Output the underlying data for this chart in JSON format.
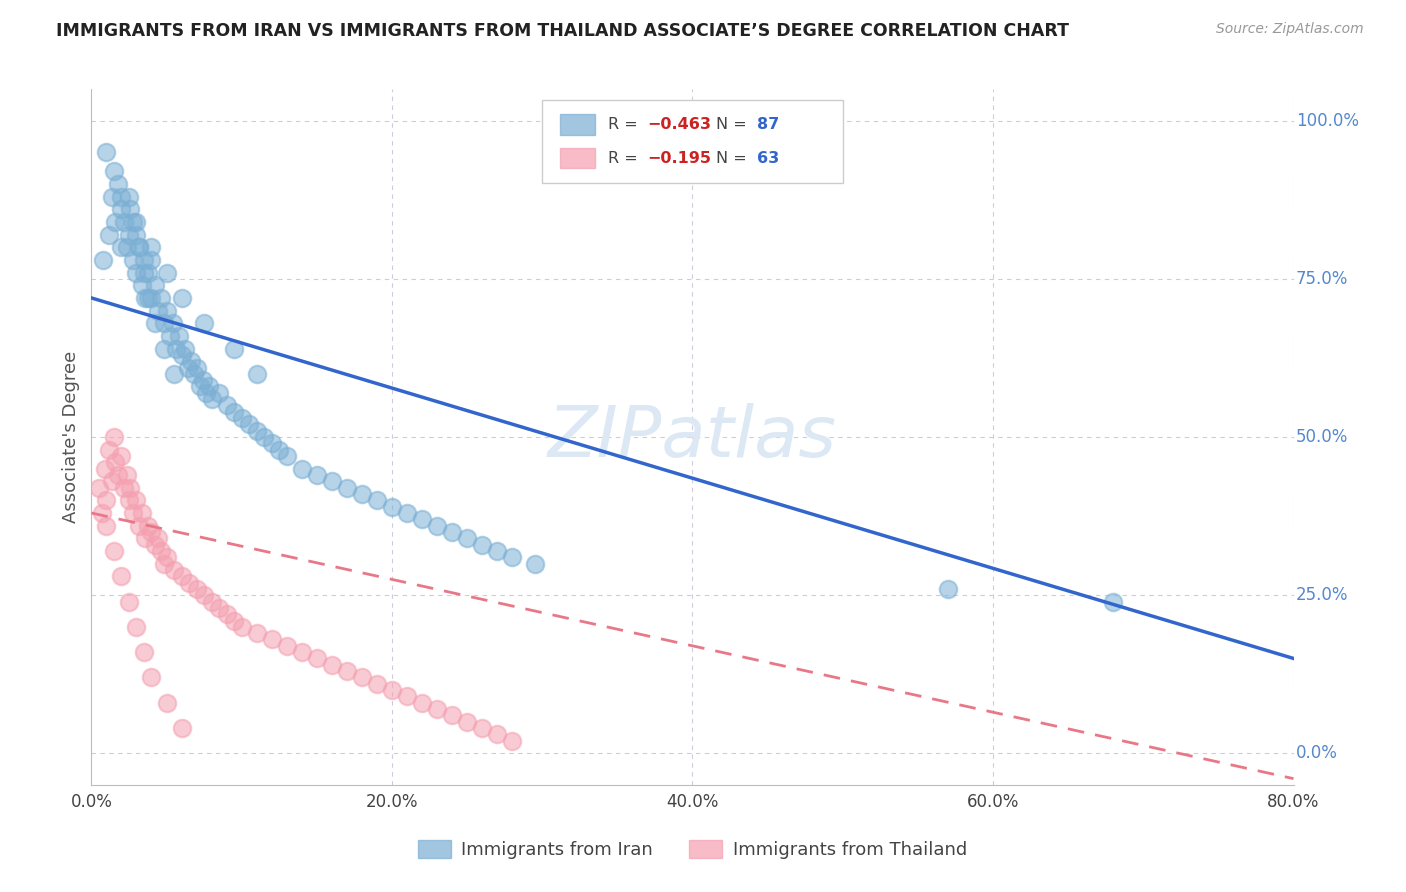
{
  "title": "IMMIGRANTS FROM IRAN VS IMMIGRANTS FROM THAILAND ASSOCIATE’S DEGREE CORRELATION CHART",
  "source": "Source: ZipAtlas.com",
  "ylabel": "Associate's Degree",
  "iran_color": "#7bafd4",
  "thailand_color": "#f4a0b0",
  "line_iran_color": "#3366cc",
  "line_thailand_color": "#e87888",
  "background_color": "#ffffff",
  "grid_color": "#ccccdd",
  "watermark_color": "#dde8f5",
  "legend_iran_r": "-0.463",
  "legend_iran_n": "87",
  "legend_thailand_r": "-0.195",
  "legend_thailand_n": "63",
  "legend_label_iran": "Immigrants from Iran",
  "legend_label_thailand": "Immigrants from Thailand",
  "xlim": [
    0.0,
    0.8
  ],
  "ylim": [
    -0.05,
    1.05
  ],
  "xtick_positions": [
    0.0,
    0.2,
    0.4,
    0.6,
    0.8
  ],
  "xtick_labels": [
    "0.0%",
    "20.0%",
    "40.0%",
    "60.0%",
    "80.0%"
  ],
  "right_ytick_positions": [
    0.0,
    0.25,
    0.5,
    0.75,
    1.0
  ],
  "right_ytick_labels": [
    "0.0%",
    "25.0%",
    "50.0%",
    "75.0%",
    "100.0%"
  ],
  "iran_line_x0": 0.0,
  "iran_line_x1": 0.8,
  "iran_line_y0": 0.72,
  "iran_line_y1": 0.15,
  "thailand_line_x0": 0.0,
  "thailand_line_x1": 0.8,
  "thailand_line_y0": 0.38,
  "thailand_line_y1": -0.04,
  "iran_scatter_x": [
    0.008,
    0.01,
    0.012,
    0.014,
    0.016,
    0.018,
    0.02,
    0.02,
    0.022,
    0.024,
    0.025,
    0.026,
    0.028,
    0.03,
    0.03,
    0.032,
    0.034,
    0.035,
    0.036,
    0.038,
    0.04,
    0.04,
    0.042,
    0.044,
    0.046,
    0.048,
    0.05,
    0.052,
    0.054,
    0.056,
    0.058,
    0.06,
    0.062,
    0.064,
    0.066,
    0.068,
    0.07,
    0.072,
    0.074,
    0.076,
    0.078,
    0.08,
    0.085,
    0.09,
    0.095,
    0.1,
    0.105,
    0.11,
    0.115,
    0.12,
    0.125,
    0.13,
    0.14,
    0.15,
    0.16,
    0.17,
    0.18,
    0.19,
    0.2,
    0.21,
    0.22,
    0.23,
    0.24,
    0.25,
    0.26,
    0.27,
    0.28,
    0.295,
    0.025,
    0.028,
    0.032,
    0.035,
    0.038,
    0.042,
    0.048,
    0.055,
    0.015,
    0.02,
    0.03,
    0.04,
    0.05,
    0.06,
    0.075,
    0.095,
    0.11,
    0.57,
    0.68
  ],
  "iran_scatter_y": [
    0.78,
    0.95,
    0.82,
    0.88,
    0.84,
    0.9,
    0.86,
    0.8,
    0.84,
    0.8,
    0.82,
    0.86,
    0.78,
    0.82,
    0.76,
    0.8,
    0.74,
    0.78,
    0.72,
    0.76,
    0.78,
    0.72,
    0.74,
    0.7,
    0.72,
    0.68,
    0.7,
    0.66,
    0.68,
    0.64,
    0.66,
    0.63,
    0.64,
    0.61,
    0.62,
    0.6,
    0.61,
    0.58,
    0.59,
    0.57,
    0.58,
    0.56,
    0.57,
    0.55,
    0.54,
    0.53,
    0.52,
    0.51,
    0.5,
    0.49,
    0.48,
    0.47,
    0.45,
    0.44,
    0.43,
    0.42,
    0.41,
    0.4,
    0.39,
    0.38,
    0.37,
    0.36,
    0.35,
    0.34,
    0.33,
    0.32,
    0.31,
    0.3,
    0.88,
    0.84,
    0.8,
    0.76,
    0.72,
    0.68,
    0.64,
    0.6,
    0.92,
    0.88,
    0.84,
    0.8,
    0.76,
    0.72,
    0.68,
    0.64,
    0.6,
    0.26,
    0.24
  ],
  "thailand_scatter_x": [
    0.005,
    0.007,
    0.009,
    0.01,
    0.012,
    0.014,
    0.015,
    0.016,
    0.018,
    0.02,
    0.022,
    0.024,
    0.025,
    0.026,
    0.028,
    0.03,
    0.032,
    0.034,
    0.036,
    0.038,
    0.04,
    0.042,
    0.044,
    0.046,
    0.048,
    0.05,
    0.055,
    0.06,
    0.065,
    0.07,
    0.075,
    0.08,
    0.085,
    0.09,
    0.095,
    0.1,
    0.11,
    0.12,
    0.13,
    0.14,
    0.15,
    0.16,
    0.17,
    0.18,
    0.19,
    0.2,
    0.21,
    0.22,
    0.23,
    0.24,
    0.25,
    0.26,
    0.27,
    0.28,
    0.01,
    0.015,
    0.02,
    0.025,
    0.03,
    0.035,
    0.04,
    0.05,
    0.06
  ],
  "thailand_scatter_y": [
    0.42,
    0.38,
    0.45,
    0.4,
    0.48,
    0.43,
    0.5,
    0.46,
    0.44,
    0.47,
    0.42,
    0.44,
    0.4,
    0.42,
    0.38,
    0.4,
    0.36,
    0.38,
    0.34,
    0.36,
    0.35,
    0.33,
    0.34,
    0.32,
    0.3,
    0.31,
    0.29,
    0.28,
    0.27,
    0.26,
    0.25,
    0.24,
    0.23,
    0.22,
    0.21,
    0.2,
    0.19,
    0.18,
    0.17,
    0.16,
    0.15,
    0.14,
    0.13,
    0.12,
    0.11,
    0.1,
    0.09,
    0.08,
    0.07,
    0.06,
    0.05,
    0.04,
    0.03,
    0.02,
    0.36,
    0.32,
    0.28,
    0.24,
    0.2,
    0.16,
    0.12,
    0.08,
    0.04
  ]
}
